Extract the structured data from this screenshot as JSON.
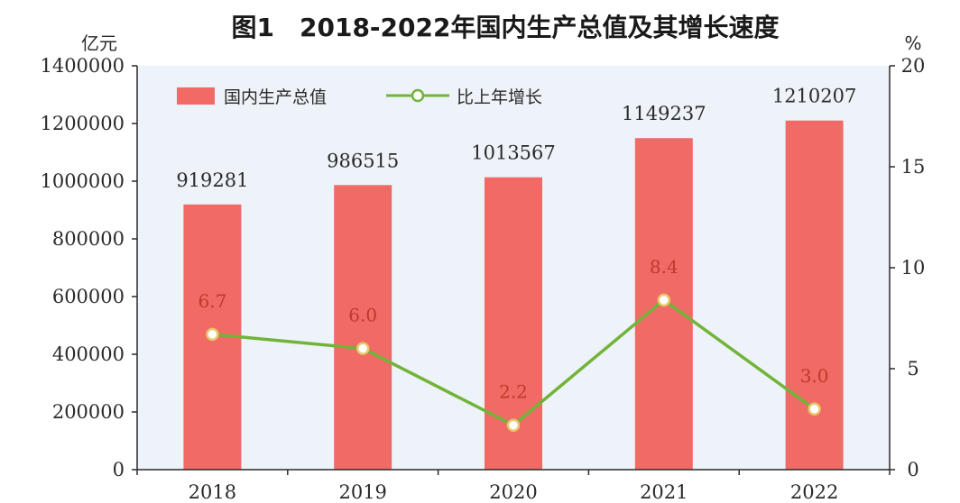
{
  "chart_data": {
    "type": "bar",
    "title": "图1　2018-2022年国内生产总值及其增长速度",
    "categories": [
      "2018",
      "2019",
      "2020",
      "2021",
      "2022"
    ],
    "series": [
      {
        "name": "国内生产总值",
        "type": "bar",
        "axis": "left",
        "values": [
          919281,
          986515,
          1013567,
          1149237,
          1210207
        ],
        "color": "#f06a66"
      },
      {
        "name": "比上年增长",
        "type": "line",
        "axis": "right",
        "values": [
          6.7,
          6.0,
          2.2,
          8.4,
          3.0
        ],
        "color": "#72b33a"
      }
    ],
    "y_left": {
      "unit": "亿元",
      "ylim": [
        0,
        1400000
      ],
      "ticks": [
        "0",
        "200000",
        "400000",
        "600000",
        "800000",
        "1000000",
        "1200000",
        "1400000"
      ]
    },
    "y_right": {
      "unit": "%",
      "ylim": [
        0,
        20
      ],
      "ticks": [
        "0",
        "5",
        "10",
        "15",
        "20"
      ]
    },
    "legend": {
      "position": "top-left",
      "entries": [
        "国内生产总值",
        "比上年增长"
      ]
    },
    "colors": {
      "plot_background": "#eef3f9",
      "bar": "#f06a66",
      "line": "#72b33a",
      "line_label": "#c0392b",
      "marker_fill": "#ffffff",
      "axis": "#2a2a2a"
    }
  }
}
